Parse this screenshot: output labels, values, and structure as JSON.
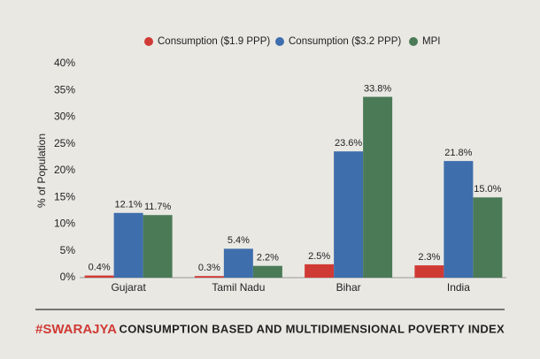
{
  "chart_data": {
    "type": "bar",
    "title": "CONSUMPTION BASED AND MULTIDIMENSIONAL POVERTY INDEX",
    "brand": "#SWARAJYA",
    "y_label": "% of Population",
    "categories": [
      "Gujarat",
      "Tamil Nadu",
      "Bihar",
      "India"
    ],
    "series": [
      {
        "name": "Consumption ($1.9 PPP)",
        "color": "#d03a35",
        "values": [
          0.4,
          0.3,
          2.5,
          2.3
        ],
        "value_labels": [
          "0.4%",
          "0.3%",
          "2.5%",
          "2.3%"
        ]
      },
      {
        "name": "Consumption ($3.2 PPP)",
        "color": "#3f6ead",
        "values": [
          12.1,
          5.4,
          23.6,
          21.8
        ],
        "value_labels": [
          "12.1%",
          "5.4%",
          "23.6%",
          "21.8%"
        ]
      },
      {
        "name": "MPI",
        "color": "#4b7a57",
        "values": [
          11.7,
          2.2,
          33.8,
          15.0
        ],
        "value_labels": [
          "11.7%",
          "2.2%",
          "33.8%",
          "15.0%"
        ]
      }
    ],
    "ylim": [
      0,
      40
    ],
    "yticks": [
      {
        "value": 0,
        "label": "0%"
      },
      {
        "value": 5,
        "label": "5%"
      },
      {
        "value": 10,
        "label": "10%"
      },
      {
        "value": 15,
        "label": "15%"
      },
      {
        "value": 20,
        "label": "20%"
      },
      {
        "value": 25,
        "label": "25%"
      },
      {
        "value": 30,
        "label": "30%"
      },
      {
        "value": 35,
        "label": "35%"
      },
      {
        "value": 40,
        "label": "40%"
      }
    ],
    "legend": "top",
    "grid": false
  }
}
